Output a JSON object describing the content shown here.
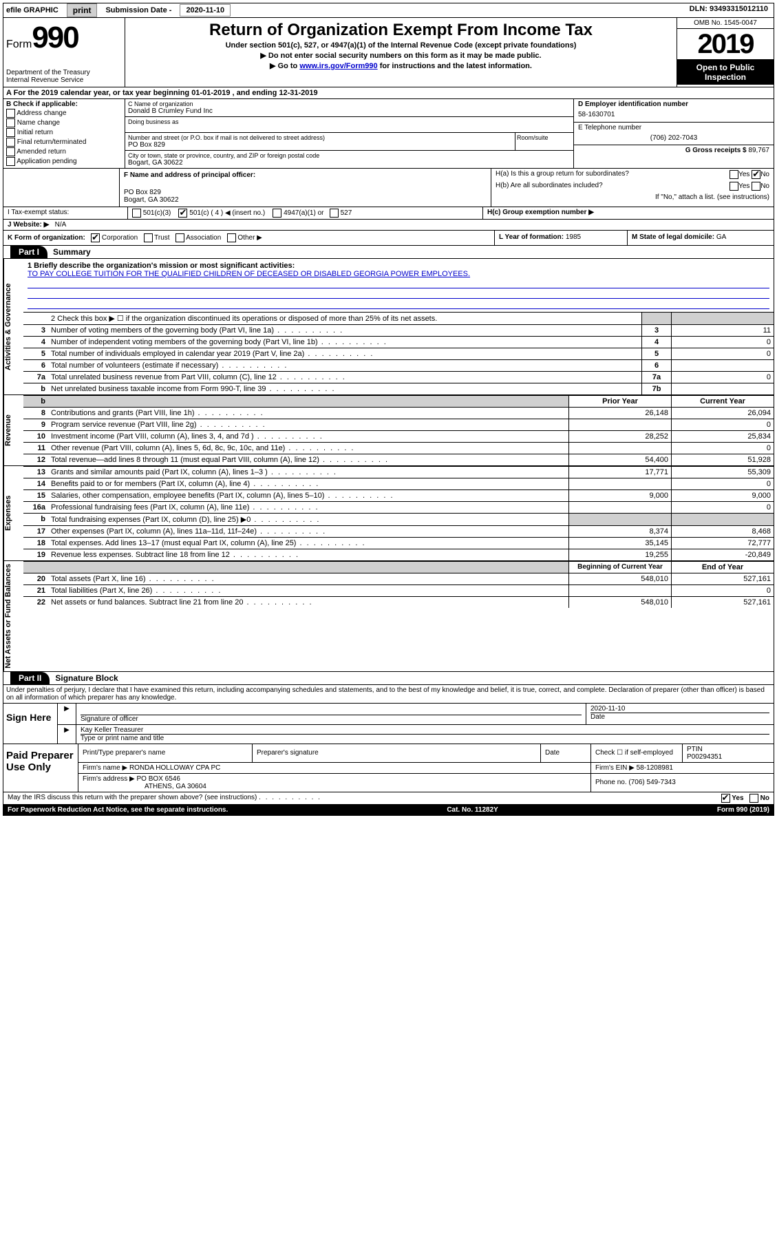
{
  "topbar": {
    "efile": "efile GRAPHIC",
    "print": "print",
    "subdate_label": "Submission Date -",
    "subdate_value": "2020-11-10",
    "dln": "DLN: 93493315012110"
  },
  "header": {
    "form_label": "Form",
    "form_number": "990",
    "dept1": "Department of the Treasury",
    "dept2": "Internal Revenue Service",
    "title": "Return of Organization Exempt From Income Tax",
    "subtitle1": "Under section 501(c), 527, or 4947(a)(1) of the Internal Revenue Code (except private foundations)",
    "subtitle2": "▶ Do not enter social security numbers on this form as it may be made public.",
    "subtitle3_pre": "▶ Go to ",
    "subtitle3_link": "www.irs.gov/Form990",
    "subtitle3_post": " for instructions and the latest information.",
    "omb": "OMB No. 1545-0047",
    "year": "2019",
    "open1": "Open to Public",
    "open2": "Inspection"
  },
  "row_a": "A For the 2019 calendar year, or tax year beginning 01-01-2019    , and ending 12-31-2019",
  "col_b": {
    "heading": "B Check if applicable:",
    "opts": [
      "Address change",
      "Name change",
      "Initial return",
      "Final return/terminated",
      "Amended return",
      "Application pending"
    ]
  },
  "col_c": {
    "name_hint": "C Name of organization",
    "name_val": "Donald B Crumley Fund Inc",
    "dba_hint": "Doing business as",
    "addr_hint": "Number and street (or P.O. box if mail is not delivered to street address)",
    "addr_val": "PO Box 829",
    "room_hint": "Room/suite",
    "city_hint": "City or town, state or province, country, and ZIP or foreign postal code",
    "city_val": "Bogart, GA  30622"
  },
  "col_d": {
    "ein_hint": "D Employer identification number",
    "ein_val": "58-1630701",
    "phone_hint": "E Telephone number",
    "phone_val": "(706) 202-7043",
    "gross_label": "G Gross receipts $",
    "gross_val": "89,767"
  },
  "col_f": {
    "hint": "F  Name and address of principal officer:",
    "line1": "PO Box 829",
    "line2": "Bogart, GA  30622"
  },
  "col_h": {
    "ha": "H(a)  Is this a group return for subordinates?",
    "hb": "H(b)  Are all subordinates included?",
    "hb_note": "If \"No,\" attach a list. (see instructions)",
    "hc": "H(c)  Group exemption number ▶",
    "yes": "Yes",
    "no": "No"
  },
  "row_i": {
    "label": "I  Tax-exempt status:",
    "o1": "501(c)(3)",
    "o2": "501(c) ( 4 ) ◀ (insert no.)",
    "o3": "4947(a)(1) or",
    "o4": "527"
  },
  "row_j": {
    "label": "J  Website: ▶",
    "val": "N/A"
  },
  "row_k": {
    "label": "K Form of organization:",
    "o1": "Corporation",
    "o2": "Trust",
    "o3": "Association",
    "o4": "Other ▶",
    "l_label": "L Year of formation:",
    "l_val": "1985",
    "m_label": "M State of legal domicile:",
    "m_val": "GA"
  },
  "part1": {
    "tab": "Part I",
    "title": "Summary",
    "q1_label": "1  Briefly describe the organization's mission or most significant activities:",
    "q1_text": "TO PAY COLLEGE TUITION FOR THE QUALIFIED CHILDREN OF DECEASED OR DISABLED GEORGIA POWER EMPLOYEES.",
    "q2": "2    Check this box ▶ ☐  if the organization discontinued its operations or disposed of more than 25% of its net assets.",
    "lines_gov": [
      {
        "n": "3",
        "t": "Number of voting members of the governing body (Part VI, line 1a)",
        "k": "3",
        "v": "11"
      },
      {
        "n": "4",
        "t": "Number of independent voting members of the governing body (Part VI, line 1b)",
        "k": "4",
        "v": "0"
      },
      {
        "n": "5",
        "t": "Total number of individuals employed in calendar year 2019 (Part V, line 2a)",
        "k": "5",
        "v": "0"
      },
      {
        "n": "6",
        "t": "Total number of volunteers (estimate if necessary)",
        "k": "6",
        "v": ""
      },
      {
        "n": "7a",
        "t": "Total unrelated business revenue from Part VIII, column (C), line 12",
        "k": "7a",
        "v": "0"
      },
      {
        "n": "b",
        "t": "Net unrelated business taxable income from Form 990-T, line 39",
        "k": "7b",
        "v": ""
      }
    ],
    "prior_head": "Prior Year",
    "current_head": "Current Year",
    "lines_rev": [
      {
        "n": "8",
        "t": "Contributions and grants (Part VIII, line 1h)",
        "p": "26,148",
        "c": "26,094"
      },
      {
        "n": "9",
        "t": "Program service revenue (Part VIII, line 2g)",
        "p": "",
        "c": "0"
      },
      {
        "n": "10",
        "t": "Investment income (Part VIII, column (A), lines 3, 4, and 7d )",
        "p": "28,252",
        "c": "25,834"
      },
      {
        "n": "11",
        "t": "Other revenue (Part VIII, column (A), lines 5, 6d, 8c, 9c, 10c, and 11e)",
        "p": "",
        "c": "0"
      },
      {
        "n": "12",
        "t": "Total revenue—add lines 8 through 11 (must equal Part VIII, column (A), line 12)",
        "p": "54,400",
        "c": "51,928"
      }
    ],
    "lines_exp": [
      {
        "n": "13",
        "t": "Grants and similar amounts paid (Part IX, column (A), lines 1–3 )",
        "p": "17,771",
        "c": "55,309"
      },
      {
        "n": "14",
        "t": "Benefits paid to or for members (Part IX, column (A), line 4)",
        "p": "",
        "c": "0"
      },
      {
        "n": "15",
        "t": "Salaries, other compensation, employee benefits (Part IX, column (A), lines 5–10)",
        "p": "9,000",
        "c": "9,000"
      },
      {
        "n": "16a",
        "t": "Professional fundraising fees (Part IX, column (A), line 11e)",
        "p": "",
        "c": "0"
      },
      {
        "n": "b",
        "t": "Total fundraising expenses (Part IX, column (D), line 25) ▶0",
        "p": "grey",
        "c": "grey"
      },
      {
        "n": "17",
        "t": "Other expenses (Part IX, column (A), lines 11a–11d, 11f–24e)",
        "p": "8,374",
        "c": "8,468"
      },
      {
        "n": "18",
        "t": "Total expenses. Add lines 13–17 (must equal Part IX, column (A), line 25)",
        "p": "35,145",
        "c": "72,777"
      },
      {
        "n": "19",
        "t": "Revenue less expenses. Subtract line 18 from line 12",
        "p": "19,255",
        "c": "-20,849"
      }
    ],
    "begin_head": "Beginning of Current Year",
    "end_head": "End of Year",
    "lines_net": [
      {
        "n": "20",
        "t": "Total assets (Part X, line 16)",
        "p": "548,010",
        "c": "527,161"
      },
      {
        "n": "21",
        "t": "Total liabilities (Part X, line 26)",
        "p": "",
        "c": "0"
      },
      {
        "n": "22",
        "t": "Net assets or fund balances. Subtract line 21 from line 20",
        "p": "548,010",
        "c": "527,161"
      }
    ],
    "side_gov": "Activities & Governance",
    "side_rev": "Revenue",
    "side_exp": "Expenses",
    "side_net": "Net Assets or Fund Balances"
  },
  "part2": {
    "tab": "Part II",
    "title": "Signature Block",
    "perjury": "Under penalties of perjury, I declare that I have examined this return, including accompanying schedules and statements, and to the best of my knowledge and belief, it is true, correct, and complete. Declaration of preparer (other than officer) is based on all information of which preparer has any knowledge."
  },
  "sign": {
    "left": "Sign Here",
    "sig_officer": "Signature of officer",
    "date_val": "2020-11-10",
    "date_label": "Date",
    "name_val": "Kay Keller Treasurer",
    "name_hint": "Type or print name and title"
  },
  "prep": {
    "left": "Paid Preparer Use Only",
    "h1": "Print/Type preparer's name",
    "h2": "Preparer's signature",
    "h3": "Date",
    "h4_check": "Check ☐ if self-employed",
    "h5": "PTIN",
    "ptin": "P00294351",
    "firm_name_l": "Firm's name    ▶",
    "firm_name_v": "RONDA HOLLOWAY CPA PC",
    "firm_ein_l": "Firm's EIN ▶",
    "firm_ein_v": "58-1208981",
    "firm_addr_l": "Firm's address ▶",
    "firm_addr_v1": "PO BOX 6546",
    "firm_addr_v2": "ATHENS, GA  30604",
    "phone_l": "Phone no.",
    "phone_v": "(706) 549-7343"
  },
  "footer": {
    "discuss": "May the IRS discuss this return with the preparer shown above? (see instructions)",
    "yes": "Yes",
    "no": "No",
    "paperwork": "For Paperwork Reduction Act Notice, see the separate instructions.",
    "cat": "Cat. No. 11282Y",
    "form": "Form 990 (2019)"
  }
}
